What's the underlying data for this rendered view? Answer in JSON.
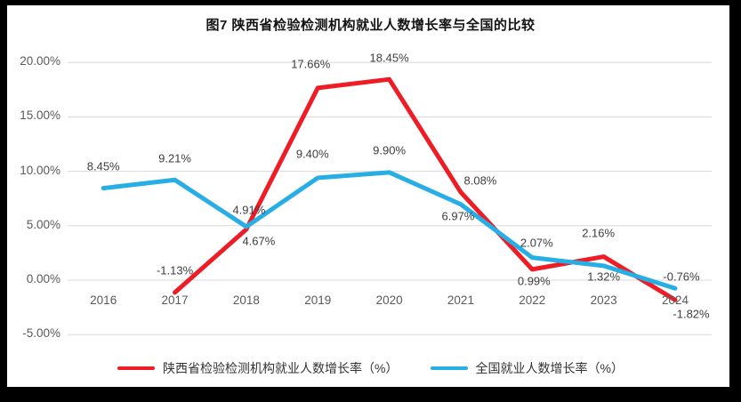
{
  "chart_data": {
    "type": "line",
    "title": "图7 陕西省检验检测机构就业人数增长率与全国的比较",
    "categories": [
      "2016",
      "2017",
      "2018",
      "2019",
      "2020",
      "2021",
      "2022",
      "2023",
      "2024"
    ],
    "series": [
      {
        "name": "陕西省检验检测机构就业人数增长率（%）",
        "color": "#ee1c25",
        "values": [
          null,
          -1.13,
          4.67,
          17.66,
          18.45,
          8.08,
          0.99,
          2.16,
          -1.82
        ],
        "point_labels": [
          "",
          "-1.13%",
          "4.67%",
          "17.66%",
          "18.45%",
          "8.08%",
          "0.99%",
          "2.16%",
          "-1.82%"
        ],
        "label_offsets": [
          [
            0,
            0
          ],
          [
            0,
            -25
          ],
          [
            14,
            13
          ],
          [
            -8,
            -27
          ],
          [
            0,
            -24
          ],
          [
            22,
            -13
          ],
          [
            2,
            13
          ],
          [
            -6,
            -27
          ],
          [
            18,
            16
          ]
        ]
      },
      {
        "name": "全国就业人数增长率（%）",
        "color": "#27aee4",
        "values": [
          8.45,
          9.21,
          4.91,
          9.4,
          9.9,
          6.97,
          2.07,
          1.32,
          -0.76
        ],
        "point_labels": [
          "8.45%",
          "9.21%",
          "4.91%",
          "9.40%",
          "9.90%",
          "6.97%",
          "2.07%",
          "1.32%",
          "-0.76%"
        ],
        "label_offsets": [
          [
            0,
            -25
          ],
          [
            0,
            -24
          ],
          [
            3,
            -19
          ],
          [
            -6,
            -27
          ],
          [
            0,
            -25
          ],
          [
            -3,
            13
          ],
          [
            5,
            -17
          ],
          [
            0,
            12
          ],
          [
            7,
            -13
          ]
        ]
      }
    ],
    "y_axis": {
      "tick_labels": [
        "20.00%",
        "15.00%",
        "10.00%",
        "5.00%",
        "0.00%",
        "-5.00%"
      ],
      "tick_values": [
        20,
        15,
        10,
        5,
        0,
        -5
      ],
      "min": -5,
      "max": 20
    },
    "grid": true,
    "grid_color": "#d8d8d8",
    "legend_position": "bottom"
  }
}
